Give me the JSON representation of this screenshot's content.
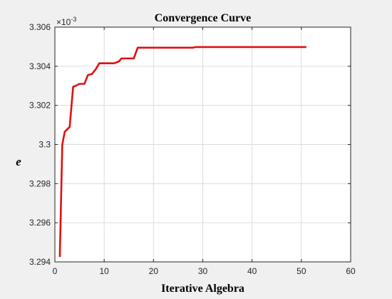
{
  "chart_data": {
    "type": "line",
    "title": "Convergence Curve",
    "xlabel": "Iterative Algebra",
    "ylabel": "e",
    "xlim": [
      0,
      60
    ],
    "ylim": [
      3.294,
      3.306
    ],
    "y_multiplier": {
      "base": "×10",
      "exponent": "-3"
    },
    "xticks": [
      0,
      10,
      20,
      30,
      40,
      50,
      60
    ],
    "yticks": [
      3.294,
      3.296,
      3.298,
      3.3,
      3.302,
      3.304,
      3.306
    ],
    "ytick_labels": [
      "3.294",
      "3.296",
      "3.298",
      "3.3",
      "3.302",
      "3.304",
      "3.306"
    ],
    "grid": true,
    "line_color": "#e01010",
    "series": [
      {
        "x": [
          1,
          1.5,
          2,
          3,
          3.7,
          4.2,
          5,
          6,
          6.7,
          7.5,
          8.3,
          9,
          12,
          13,
          13.5,
          16,
          16.8,
          28,
          28.5,
          51
        ],
        "y": [
          3.29425,
          3.3,
          3.30065,
          3.3009,
          3.30295,
          3.303,
          3.3031,
          3.3031,
          3.30355,
          3.3036,
          3.30385,
          3.30415,
          3.30415,
          3.30425,
          3.3044,
          3.3044,
          3.30495,
          3.30495,
          3.30498,
          3.30498
        ]
      }
    ]
  }
}
